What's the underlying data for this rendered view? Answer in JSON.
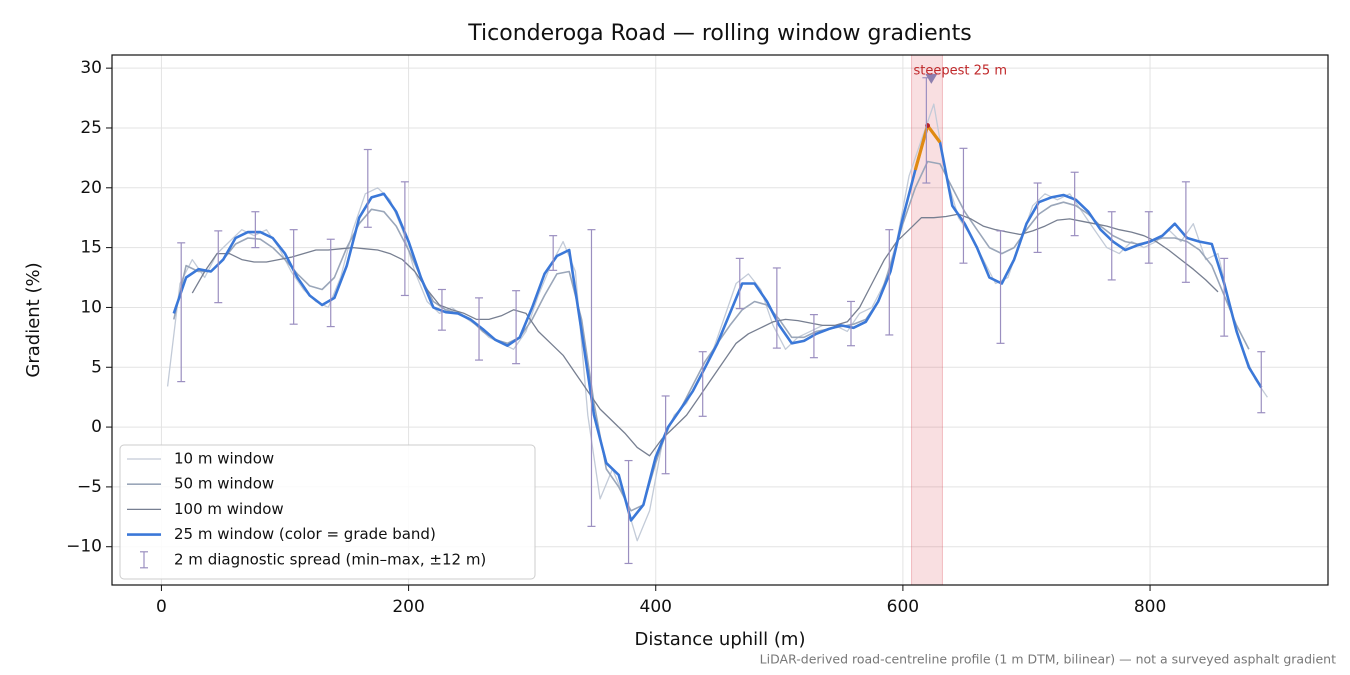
{
  "chart_data": {
    "type": "line",
    "title": "Ticonderoga Road — rolling window gradients",
    "xlabel": "Distance uphill (m)",
    "ylabel": "Gradient (%)",
    "footnote": "LiDAR-derived road-centreline profile (1 m DTM, bilinear) — not a surveyed asphalt gradient",
    "xlim": [
      -40,
      944
    ],
    "ylim": [
      -13.2,
      31.1
    ],
    "xticks": [
      0,
      200,
      400,
      600,
      800
    ],
    "yticks": [
      {
        "value": -10,
        "label": "−10"
      },
      {
        "value": -5,
        "label": "−5"
      },
      0,
      5,
      10,
      15,
      20,
      25,
      30
    ],
    "grid": true,
    "legend": "lower left",
    "highlight": {
      "x0": 607,
      "x1": 632,
      "label": "steepest 25 m",
      "marker_x": 623,
      "marker_y": 29.1,
      "color": "#d9434e",
      "marker_color": "#8e7fae"
    },
    "series": [
      {
        "name": "10 m window",
        "kind": "line",
        "color": "#c3cbd8",
        "width": 1.3,
        "x": [
          5,
          15,
          25,
          35,
          45,
          55,
          65,
          75,
          85,
          95,
          105,
          115,
          125,
          135,
          145,
          155,
          165,
          175,
          185,
          195,
          205,
          215,
          225,
          235,
          245,
          255,
          265,
          275,
          285,
          295,
          305,
          315,
          325,
          335,
          345,
          355,
          365,
          375,
          385,
          395,
          405,
          415,
          425,
          435,
          445,
          455,
          465,
          475,
          485,
          495,
          505,
          515,
          525,
          535,
          545,
          555,
          565,
          575,
          585,
          595,
          605,
          615,
          625,
          635,
          645,
          655,
          665,
          675,
          685,
          695,
          705,
          715,
          725,
          735,
          745,
          755,
          765,
          775,
          785,
          795,
          805,
          815,
          825,
          835,
          845,
          855,
          865,
          875,
          885,
          895
        ],
        "values": [
          3.4,
          12.0,
          14.0,
          12.5,
          14.5,
          15.5,
          16.5,
          16.0,
          16.5,
          15.0,
          13.0,
          11.5,
          10.5,
          10.0,
          12.5,
          16.5,
          19.5,
          20.0,
          19.0,
          16.5,
          13.0,
          10.5,
          9.5,
          10.0,
          9.2,
          8.5,
          7.5,
          7.0,
          6.5,
          8.0,
          11.0,
          13.5,
          15.5,
          13.0,
          1.0,
          -6.0,
          -3.5,
          -6.0,
          -9.5,
          -7.0,
          -1.5,
          1.0,
          2.0,
          4.0,
          6.0,
          9.0,
          12.0,
          12.8,
          11.5,
          8.5,
          6.5,
          7.5,
          8.0,
          8.5,
          8.5,
          8.0,
          9.5,
          10.0,
          12.0,
          15.5,
          21.0,
          24.0,
          27.0,
          21.0,
          17.5,
          16.0,
          14.0,
          12.0,
          12.5,
          15.5,
          18.5,
          19.5,
          19.0,
          19.5,
          18.0,
          16.5,
          15.0,
          14.5,
          15.5,
          15.0,
          15.5,
          16.5,
          15.5,
          17.0,
          14.0,
          14.5,
          10.0,
          6.5,
          4.0,
          2.5
        ]
      },
      {
        "name": "50 m window",
        "kind": "line",
        "color": "#9aa6b9",
        "width": 1.6,
        "x": [
          10,
          20,
          30,
          40,
          50,
          60,
          70,
          80,
          90,
          100,
          110,
          120,
          130,
          140,
          150,
          160,
          170,
          180,
          190,
          200,
          210,
          220,
          230,
          240,
          250,
          260,
          270,
          280,
          290,
          300,
          310,
          320,
          330,
          340,
          350,
          360,
          370,
          380,
          390,
          400,
          410,
          420,
          430,
          440,
          450,
          460,
          470,
          480,
          490,
          500,
          510,
          520,
          530,
          540,
          550,
          560,
          570,
          580,
          590,
          600,
          610,
          620,
          630,
          640,
          650,
          660,
          670,
          680,
          690,
          700,
          710,
          720,
          730,
          740,
          750,
          760,
          770,
          780,
          790,
          800,
          810,
          820,
          830,
          840,
          850,
          860,
          870,
          880
        ],
        "values": [
          9.0,
          13.5,
          13.0,
          13.0,
          14.0,
          15.3,
          15.8,
          15.7,
          15.0,
          14.0,
          12.8,
          11.8,
          11.5,
          12.5,
          15.0,
          17.0,
          18.2,
          18.0,
          16.8,
          14.8,
          12.5,
          10.5,
          9.8,
          9.5,
          9.0,
          8.0,
          7.3,
          7.0,
          7.5,
          9.0,
          11.0,
          12.8,
          13.0,
          9.0,
          2.0,
          -3.5,
          -5.0,
          -7.0,
          -6.5,
          -3.0,
          0.0,
          1.5,
          3.5,
          5.5,
          7.0,
          8.5,
          9.8,
          10.5,
          10.2,
          9.0,
          7.5,
          7.5,
          8.0,
          8.2,
          8.4,
          8.6,
          9.0,
          10.5,
          13.5,
          17.0,
          20.0,
          22.2,
          22.0,
          20.0,
          18.0,
          16.5,
          15.0,
          14.5,
          15.0,
          16.5,
          17.8,
          18.5,
          18.8,
          18.5,
          17.8,
          16.8,
          16.0,
          15.5,
          15.3,
          15.5,
          15.8,
          15.8,
          15.5,
          14.8,
          13.5,
          11.0,
          8.5,
          6.5
        ]
      },
      {
        "name": "100 m window",
        "kind": "line",
        "color": "#777f91",
        "width": 1.3,
        "x": [
          25,
          35,
          45,
          55,
          65,
          75,
          85,
          95,
          105,
          115,
          125,
          135,
          145,
          155,
          165,
          175,
          185,
          195,
          205,
          215,
          225,
          235,
          245,
          255,
          265,
          275,
          285,
          295,
          305,
          315,
          325,
          335,
          345,
          355,
          365,
          375,
          385,
          395,
          405,
          415,
          425,
          435,
          445,
          455,
          465,
          475,
          485,
          495,
          505,
          515,
          525,
          535,
          545,
          555,
          565,
          575,
          585,
          595,
          605,
          615,
          625,
          635,
          645,
          655,
          665,
          675,
          685,
          695,
          705,
          715,
          725,
          735,
          745,
          755,
          765,
          775,
          785,
          795,
          805,
          815,
          825,
          835,
          845,
          855
        ],
        "values": [
          11.2,
          13.0,
          14.5,
          14.5,
          14.0,
          13.8,
          13.8,
          14.0,
          14.2,
          14.5,
          14.8,
          14.8,
          14.9,
          15.0,
          14.9,
          14.8,
          14.5,
          14.0,
          13.0,
          11.5,
          10.2,
          9.8,
          9.5,
          9.0,
          9.0,
          9.3,
          9.8,
          9.5,
          8.0,
          7.0,
          6.0,
          4.5,
          3.0,
          1.5,
          0.5,
          -0.5,
          -1.7,
          -2.4,
          -1.0,
          0.0,
          1.0,
          2.5,
          4.0,
          5.5,
          7.0,
          7.8,
          8.3,
          8.8,
          9.0,
          8.9,
          8.7,
          8.5,
          8.5,
          8.8,
          10.0,
          12.0,
          14.0,
          15.5,
          16.5,
          17.5,
          17.5,
          17.6,
          17.8,
          17.4,
          16.8,
          16.5,
          16.3,
          16.1,
          16.4,
          16.8,
          17.3,
          17.4,
          17.2,
          17.0,
          16.8,
          16.5,
          16.3,
          16.0,
          15.5,
          14.8,
          14.0,
          13.2,
          12.3,
          11.3
        ]
      },
      {
        "name": "25 m window (color = grade band)",
        "kind": "line",
        "color": "#3b78d8",
        "width": 2.6,
        "band_edges": [
          20,
          25
        ],
        "band_colors": [
          "#e08a12",
          "#b8232a"
        ],
        "x": [
          10,
          20,
          30,
          40,
          50,
          60,
          70,
          80,
          90,
          100,
          110,
          120,
          130,
          140,
          150,
          160,
          170,
          180,
          190,
          200,
          210,
          220,
          230,
          240,
          250,
          260,
          270,
          280,
          290,
          300,
          310,
          320,
          330,
          340,
          350,
          360,
          370,
          380,
          390,
          400,
          410,
          420,
          430,
          440,
          450,
          460,
          470,
          480,
          490,
          500,
          510,
          520,
          530,
          540,
          550,
          560,
          570,
          580,
          590,
          600,
          610,
          620,
          630,
          640,
          650,
          660,
          670,
          680,
          690,
          700,
          710,
          720,
          730,
          740,
          750,
          760,
          770,
          780,
          790,
          800,
          810,
          820,
          830,
          840,
          850,
          860,
          870,
          880,
          890
        ],
        "values": [
          9.5,
          12.5,
          13.2,
          13.0,
          14.0,
          15.8,
          16.3,
          16.3,
          15.8,
          14.5,
          12.5,
          11.0,
          10.2,
          10.8,
          13.5,
          17.5,
          19.2,
          19.5,
          18.0,
          15.5,
          12.5,
          10.0,
          9.6,
          9.5,
          9.0,
          8.2,
          7.3,
          6.8,
          7.5,
          10.0,
          12.8,
          14.3,
          14.8,
          8.0,
          1.0,
          -3.0,
          -4.0,
          -7.8,
          -6.5,
          -2.5,
          0.0,
          1.5,
          3.0,
          5.0,
          7.0,
          9.5,
          12.0,
          12.0,
          10.5,
          8.5,
          7.0,
          7.2,
          7.8,
          8.2,
          8.5,
          8.3,
          8.8,
          10.5,
          13.0,
          17.5,
          21.5,
          25.2,
          23.8,
          18.5,
          17.0,
          15.0,
          12.5,
          12.0,
          14.0,
          17.0,
          18.8,
          19.2,
          19.4,
          19.0,
          18.0,
          16.5,
          15.5,
          14.8,
          15.2,
          15.5,
          16.0,
          17.0,
          15.8,
          15.5,
          15.3,
          12.0,
          8.0,
          5.0,
          3.3
        ]
      },
      {
        "name": "2 m diagnostic spread (min–max, ±12 m)",
        "kind": "errorbar",
        "color": "#9b8fc0",
        "x": [
          16,
          46,
          76,
          107,
          137,
          167,
          197,
          227,
          257,
          287,
          317,
          348,
          378,
          408,
          438,
          468,
          498,
          528,
          558,
          589,
          619,
          649,
          679,
          709,
          739,
          769,
          799,
          829,
          860,
          890
        ],
        "low": [
          3.8,
          10.4,
          15.0,
          8.6,
          8.4,
          16.7,
          11.0,
          8.1,
          5.6,
          5.3,
          13.1,
          -8.3,
          -11.4,
          -3.9,
          0.9,
          9.9,
          6.6,
          5.8,
          6.8,
          7.7,
          20.4,
          13.7,
          7.0,
          14.6,
          16.0,
          12.3,
          13.7,
          12.1,
          7.6,
          1.2
        ],
        "high": [
          15.4,
          16.4,
          18.0,
          16.5,
          15.7,
          23.2,
          20.5,
          11.5,
          10.8,
          11.4,
          16.0,
          16.5,
          -2.8,
          2.6,
          6.3,
          14.1,
          13.3,
          9.4,
          10.5,
          16.5,
          29.2,
          23.3,
          16.4,
          20.4,
          21.3,
          18.0,
          18.0,
          20.5,
          14.1,
          6.3
        ]
      }
    ]
  }
}
